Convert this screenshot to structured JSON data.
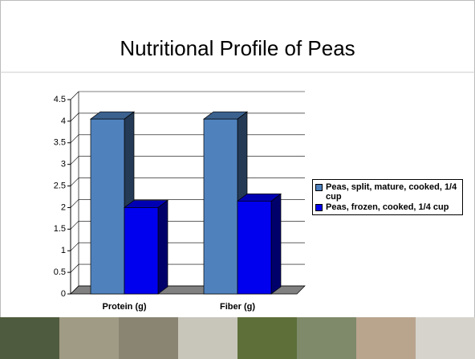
{
  "chart_data": {
    "type": "bar3d",
    "title": "Nutritional Profile of Peas",
    "categories": [
      "Protein (g)",
      "Fiber (g)"
    ],
    "series": [
      {
        "name": "Peas, split, mature, cooked, 1/4 cup",
        "color": "#4f81bd",
        "values": [
          4.05,
          4.05
        ]
      },
      {
        "name": "Peas, frozen, cooked, 1/4 cup",
        "color": "#0000ee",
        "values": [
          2.0,
          2.15
        ]
      }
    ],
    "ylim": [
      0,
      4.5
    ],
    "yticks": [
      0,
      0.5,
      1,
      1.5,
      2,
      2.5,
      3,
      3.5,
      4,
      4.5
    ],
    "grid": true,
    "legend": "right"
  }
}
